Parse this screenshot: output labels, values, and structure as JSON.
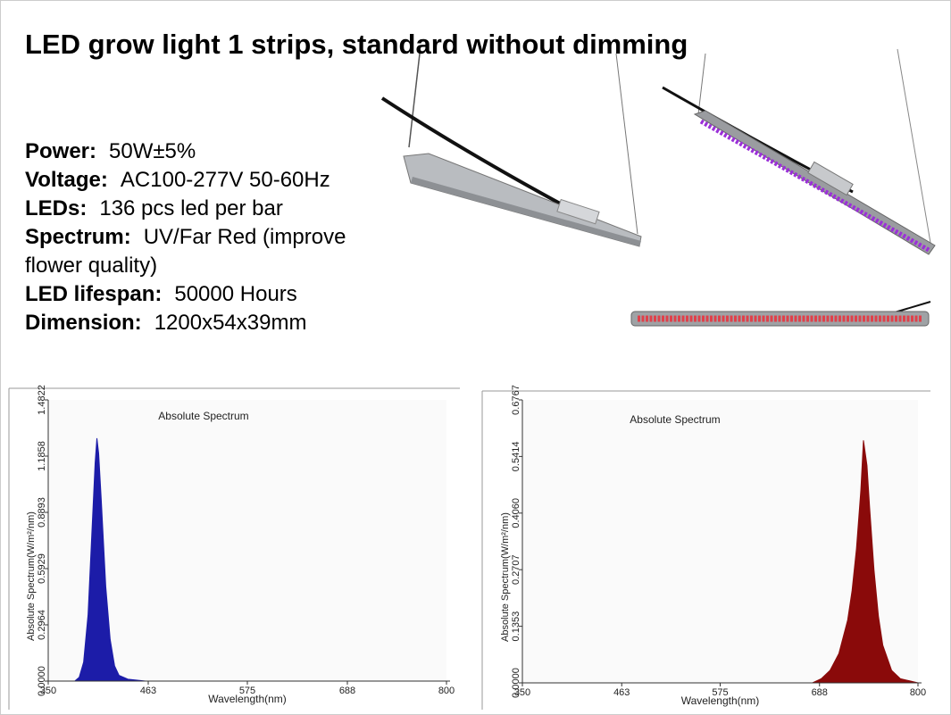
{
  "title": "LED grow light 1 strips, standard without dimming",
  "specs": [
    {
      "label": "Power:",
      "value": "50W±5%"
    },
    {
      "label": "Voltage:",
      "value": "AC100-277V 50-60Hz"
    },
    {
      "label": "LEDs:",
      "value": "136 pcs led per bar"
    },
    {
      "label": "Spectrum:",
      "value": "UV/Far Red (improve flower quality)"
    },
    {
      "label": "LED lifespan:",
      "value": "50000 Hours"
    },
    {
      "label": "Dimension:",
      "value": "1200x54x39mm"
    }
  ],
  "chart_data": [
    {
      "type": "area",
      "title": "Absolute Spectrum",
      "xlabel": "Wavelength(nm)",
      "ylabel": "Absolute Spectrum(W/m²/nm)",
      "x": [
        350,
        380,
        385,
        390,
        395,
        400,
        403,
        405,
        407,
        410,
        415,
        420,
        425,
        430,
        440,
        460,
        500,
        600,
        800
      ],
      "values": [
        0,
        0,
        0.02,
        0.1,
        0.35,
        0.85,
        1.15,
        1.28,
        1.2,
        0.95,
        0.5,
        0.22,
        0.08,
        0.03,
        0.01,
        0,
        0,
        0,
        0
      ],
      "color": "#1c1ca8",
      "xlim": [
        350,
        800
      ],
      "xticks": [
        350,
        463,
        575,
        688,
        800
      ],
      "ylim": [
        0,
        1.4822
      ],
      "yticks": [
        {
          "value": 0,
          "label": "0.0000"
        },
        0.2964,
        0.5929,
        0.8893,
        1.1858,
        1.4822
      ]
    },
    {
      "type": "area",
      "title": "Absolute Spectrum",
      "xlabel": "Wavelength(nm)",
      "ylabel": "Absolute Spectrum(W/m²/nm)",
      "x": [
        350,
        600,
        680,
        690,
        700,
        710,
        720,
        725,
        730,
        735,
        738,
        742,
        745,
        750,
        755,
        760,
        770,
        780,
        790,
        800
      ],
      "values": [
        0,
        0,
        0,
        0.01,
        0.03,
        0.07,
        0.15,
        0.22,
        0.32,
        0.46,
        0.58,
        0.52,
        0.42,
        0.27,
        0.16,
        0.09,
        0.03,
        0.01,
        0.005,
        0
      ],
      "color": "#8a0a0a",
      "xlim": [
        350,
        800
      ],
      "xticks": [
        350,
        463,
        575,
        688,
        800
      ],
      "ylim": [
        0,
        0.6767
      ],
      "yticks": [
        {
          "value": 0,
          "label": "0.0000"
        },
        0.1353,
        0.2707,
        {
          "value": 0.406,
          "label": "0.4060"
        },
        0.5414,
        0.6767
      ]
    }
  ]
}
